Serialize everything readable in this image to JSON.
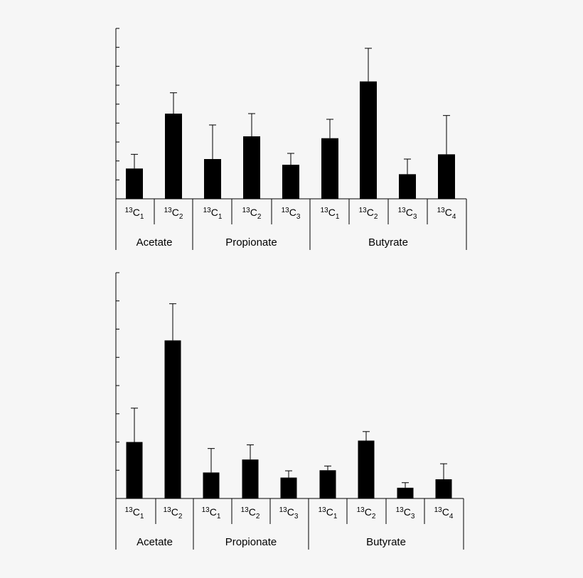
{
  "colors": {
    "background": "#f6f6f6",
    "bar": "#000000",
    "axis": "#000000"
  },
  "chart_data": [
    {
      "type": "bar",
      "title": "",
      "xlabel": "",
      "ylabel": "",
      "ylim": [
        0,
        9
      ],
      "yticks": [
        0,
        1,
        2,
        3,
        4,
        5,
        6,
        7,
        8,
        9
      ],
      "ytick_labels_shown": false,
      "grid": false,
      "error_bars": "upper",
      "groups": [
        {
          "name": "Acetate",
          "categories": [
            {
              "base": "13C",
              "iso": "13",
              "el": "C",
              "sub": "1",
              "value": 1.6,
              "error": 0.75
            },
            {
              "base": "13C",
              "iso": "13",
              "el": "C",
              "sub": "2",
              "value": 4.5,
              "error": 1.1
            }
          ]
        },
        {
          "name": "Propionate",
          "categories": [
            {
              "base": "13C",
              "iso": "13",
              "el": "C",
              "sub": "1",
              "value": 2.1,
              "error": 1.8
            },
            {
              "base": "13C",
              "iso": "13",
              "el": "C",
              "sub": "2",
              "value": 3.3,
              "error": 1.2
            },
            {
              "base": "13C",
              "iso": "13",
              "el": "C",
              "sub": "3",
              "value": 1.8,
              "error": 0.6
            }
          ]
        },
        {
          "name": "Butyrate",
          "categories": [
            {
              "base": "13C",
              "iso": "13",
              "el": "C",
              "sub": "1",
              "value": 3.2,
              "error": 1.0
            },
            {
              "base": "13C",
              "iso": "13",
              "el": "C",
              "sub": "2",
              "value": 6.2,
              "error": 1.75
            },
            {
              "base": "13C",
              "iso": "13",
              "el": "C",
              "sub": "3",
              "value": 1.3,
              "error": 0.8
            },
            {
              "base": "13C",
              "iso": "13",
              "el": "C",
              "sub": "4",
              "value": 2.35,
              "error": 2.05
            }
          ]
        }
      ]
    },
    {
      "type": "bar",
      "title": "",
      "xlabel": "",
      "ylabel": "",
      "ylim": [
        0,
        8
      ],
      "yticks": [
        0,
        1,
        2,
        3,
        4,
        5,
        6,
        7,
        8
      ],
      "ytick_labels_shown": false,
      "grid": false,
      "error_bars": "upper",
      "groups": [
        {
          "name": "Acetate",
          "categories": [
            {
              "base": "13C",
              "iso": "13",
              "el": "C",
              "sub": "1",
              "value": 2.0,
              "error": 1.2
            },
            {
              "base": "13C",
              "iso": "13",
              "el": "C",
              "sub": "2",
              "value": 5.6,
              "error": 1.3
            }
          ]
        },
        {
          "name": "Propionate",
          "categories": [
            {
              "base": "13C",
              "iso": "13",
              "el": "C",
              "sub": "1",
              "value": 0.92,
              "error": 0.85
            },
            {
              "base": "13C",
              "iso": "13",
              "el": "C",
              "sub": "2",
              "value": 1.38,
              "error": 0.52
            },
            {
              "base": "13C",
              "iso": "13",
              "el": "C",
              "sub": "3",
              "value": 0.74,
              "error": 0.24
            }
          ]
        },
        {
          "name": "Butyrate",
          "categories": [
            {
              "base": "13C",
              "iso": "13",
              "el": "C",
              "sub": "1",
              "value": 1.0,
              "error": 0.15
            },
            {
              "base": "13C",
              "iso": "13",
              "el": "C",
              "sub": "2",
              "value": 2.05,
              "error": 0.32
            },
            {
              "base": "13C",
              "iso": "13",
              "el": "C",
              "sub": "3",
              "value": 0.38,
              "error": 0.18
            },
            {
              "base": "13C",
              "iso": "13",
              "el": "C",
              "sub": "4",
              "value": 0.68,
              "error": 0.55
            }
          ]
        }
      ]
    }
  ]
}
